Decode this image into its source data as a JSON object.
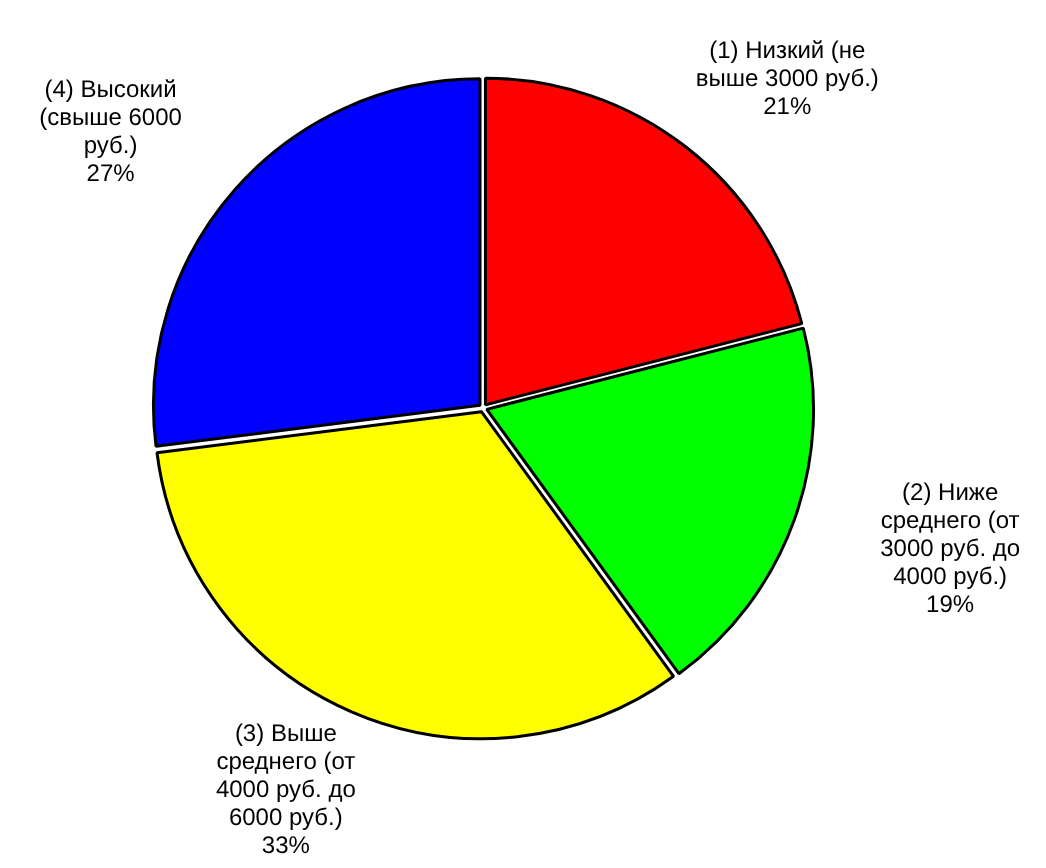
{
  "chart_data": {
    "type": "pie",
    "categories": [
      "(1) Низкий (не выше 3000 руб.)",
      "(2) Ниже среднего (от 3000 руб. до 4000 руб.)",
      "(3) Выше среднего (от 4000 руб. до 6000 руб.)",
      "(4) Высокий (свыше 6000 руб.)"
    ],
    "values": [
      21,
      19,
      33,
      27
    ],
    "colors": [
      "#ff0000",
      "#00ff00",
      "#ffff00",
      "#0000ff"
    ],
    "value_labels": [
      "21%",
      "19%",
      "33%",
      "27%"
    ],
    "legend": false
  }
}
